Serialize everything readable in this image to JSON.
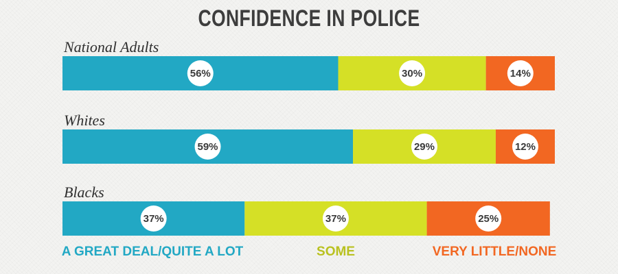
{
  "chart_data": {
    "type": "bar",
    "orientation": "horizontal",
    "stacked": true,
    "title": "CONFIDENCE IN POLICE",
    "categories": [
      "National Adults",
      "Whites",
      "Blacks"
    ],
    "series": [
      {
        "name": "A GREAT DEAL/QUITE A LOT",
        "values": [
          56,
          59,
          37
        ],
        "color": "#22a8c4"
      },
      {
        "name": "SOME",
        "values": [
          30,
          29,
          37
        ],
        "color": "#d5e026"
      },
      {
        "name": "VERY LITTLE/NONE",
        "values": [
          14,
          12,
          25
        ],
        "color": "#f26722"
      }
    ],
    "value_suffix": "%",
    "xlim": [
      0,
      100
    ],
    "grid": false,
    "legend_position": "bottom",
    "legend_colors": [
      "#22a8c4",
      "#b9c11f",
      "#f26722"
    ]
  }
}
